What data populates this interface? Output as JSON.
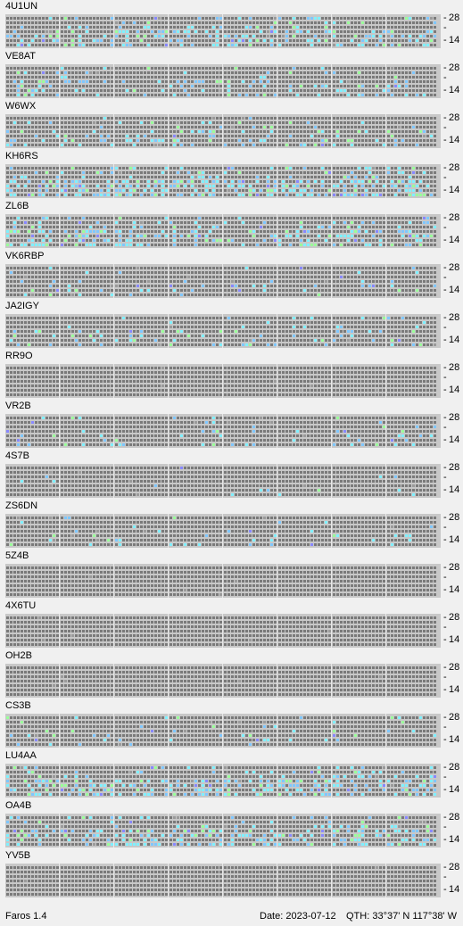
{
  "colors": {
    "background": "#f0f0f0",
    "grid_frame": "#c8c8c8",
    "cell_empty": "#7a7a7a",
    "cell_faint": "#9a9a9a",
    "cell_weak": "#7fc7ff",
    "cell_medium": "#7ff0ff",
    "cell_strong": "#9aff9a",
    "cell_blue": "#8888ff"
  },
  "axis": {
    "top_label": "28",
    "bottom_label": "14",
    "dash": "-"
  },
  "beacons": [
    {
      "call": "4U1UN"
    },
    {
      "call": "VE8AT"
    },
    {
      "call": "W6WX"
    },
    {
      "call": "KH6RS"
    },
    {
      "call": "ZL6B"
    },
    {
      "call": "VK6RBP"
    },
    {
      "call": "JA2IGY"
    },
    {
      "call": "RR9O"
    },
    {
      "call": "VR2B"
    },
    {
      "call": "4S7B"
    },
    {
      "call": "ZS6DN"
    },
    {
      "call": "5Z4B"
    },
    {
      "call": "4X6TU"
    },
    {
      "call": "OH2B"
    },
    {
      "call": "CS3B"
    },
    {
      "call": "LU4AA"
    },
    {
      "call": "OA4B"
    },
    {
      "call": "YV5B"
    }
  ],
  "status": {
    "app": "Faros 1.4",
    "date": "Date: 2023-07-12",
    "qth": "QTH:  33°37' N  117°38' W"
  }
}
